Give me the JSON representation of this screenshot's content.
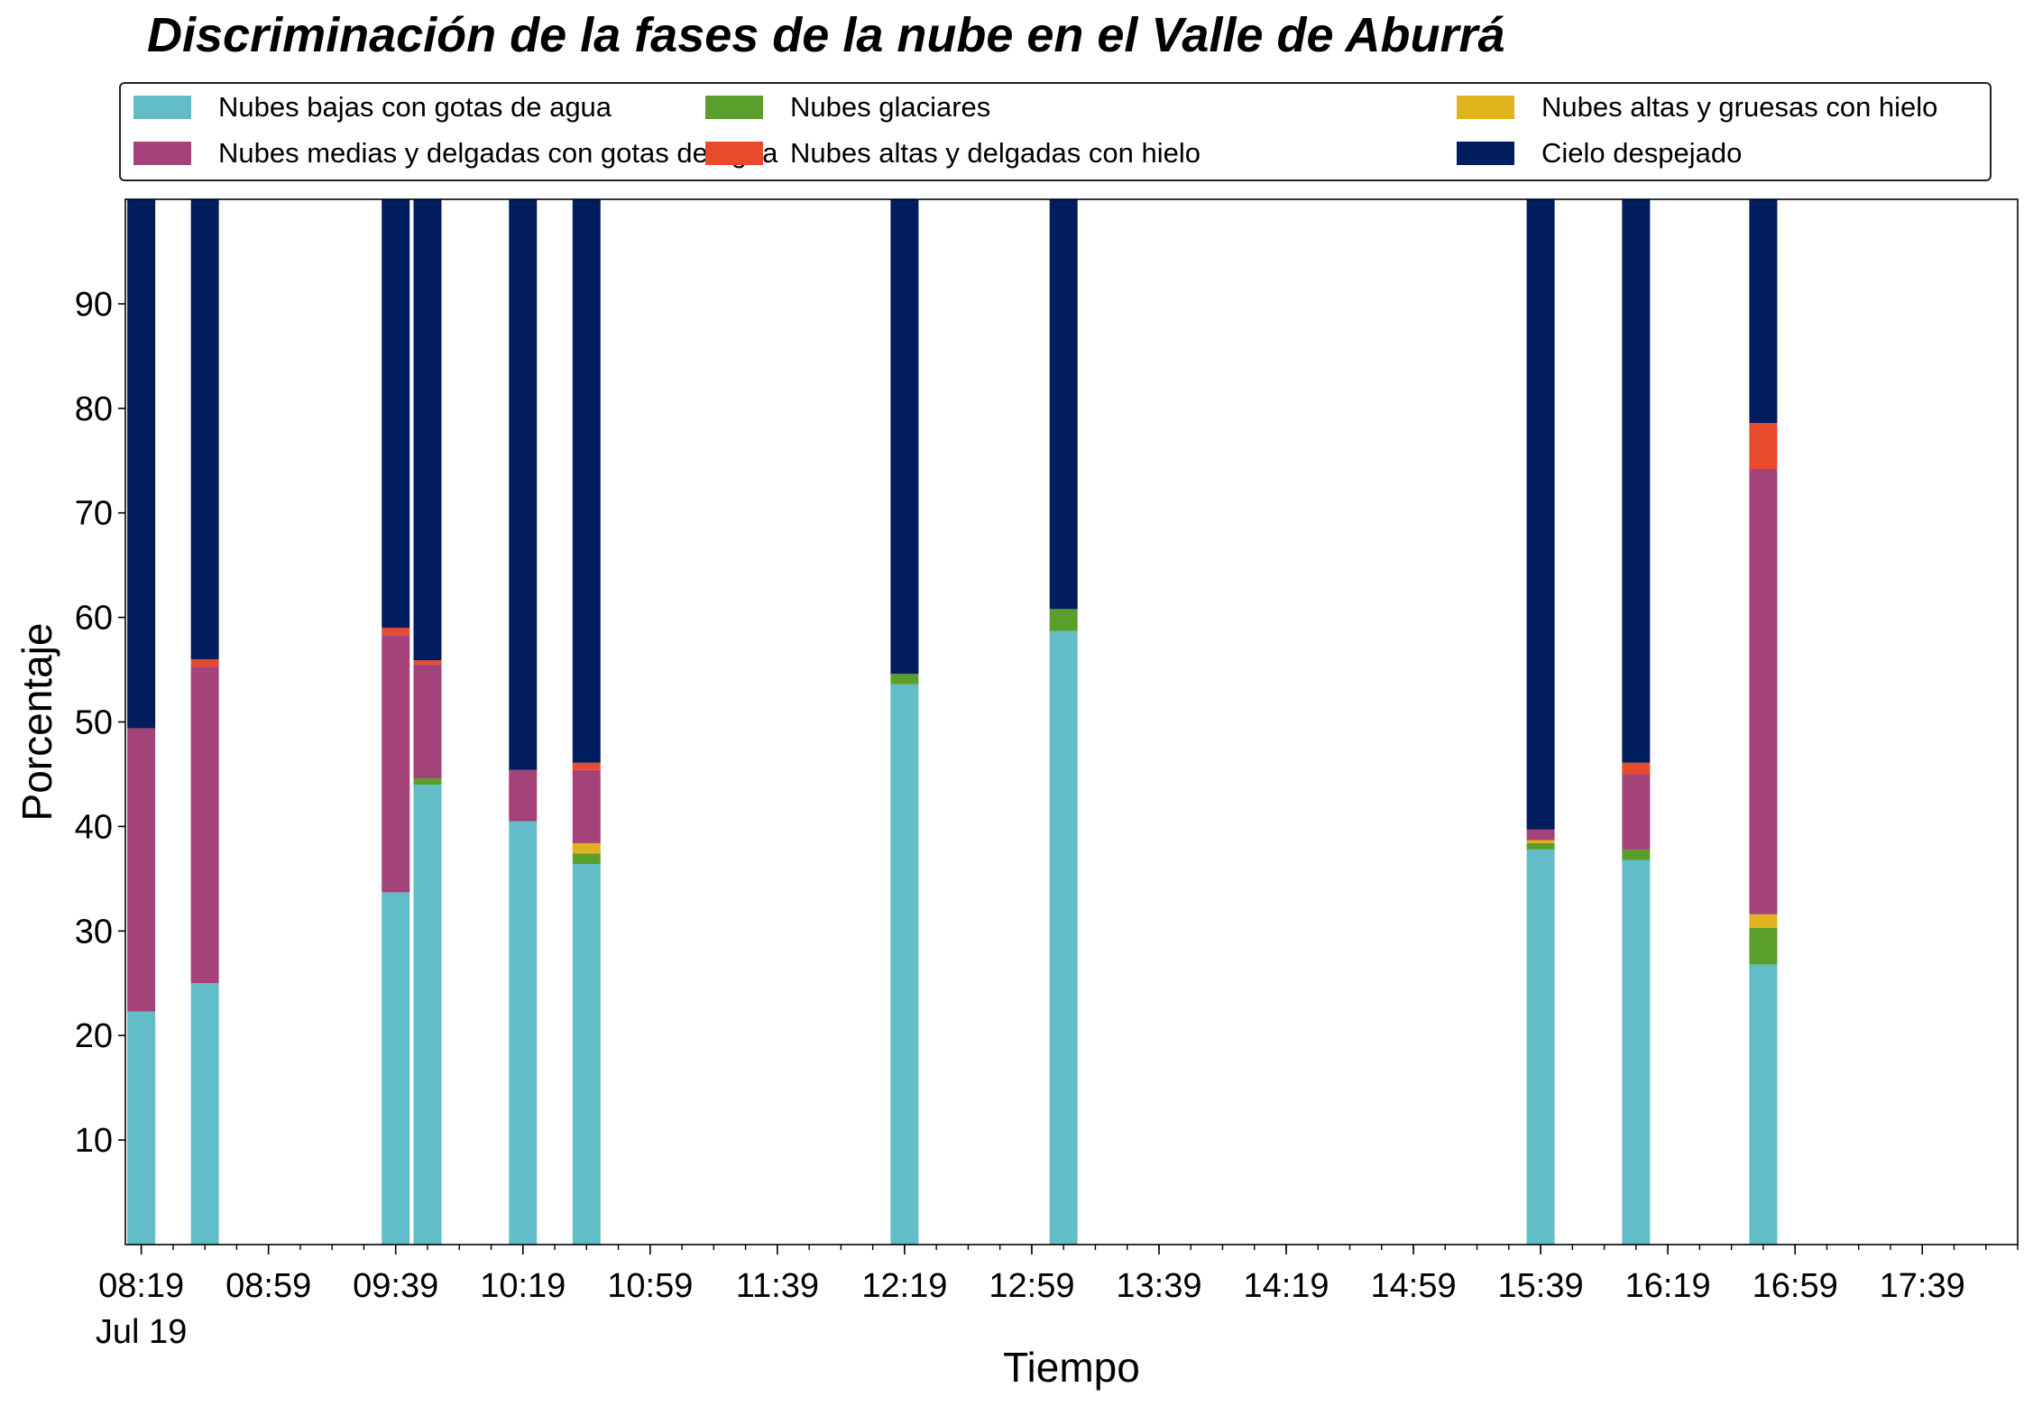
{
  "chart_data": {
    "type": "bar",
    "stacked": true,
    "title": "Discriminación de la fases de la nube en el Valle de Aburrá",
    "xlabel": "Tiempo",
    "ylabel": "Porcentaje",
    "ylim": [
      0,
      100
    ],
    "xlim": [
      "08:14",
      "18:09"
    ],
    "x_date_label": "Jul 19",
    "x_ticks": [
      "08:19",
      "08:59",
      "09:39",
      "10:19",
      "10:59",
      "11:39",
      "12:19",
      "12:59",
      "13:39",
      "14:19",
      "14:59",
      "15:39",
      "16:19",
      "16:59",
      "17:39"
    ],
    "y_ticks": [
      10,
      20,
      30,
      40,
      50,
      60,
      70,
      80,
      90
    ],
    "grid": false,
    "legend_position": "top",
    "x": [
      "08:19",
      "08:39",
      "09:39",
      "09:49",
      "10:19",
      "10:39",
      "12:19",
      "13:09",
      "15:39",
      "16:09",
      "16:49"
    ],
    "series": [
      {
        "name": "Nubes bajas con gotas de agua",
        "color": "#63bdc8",
        "values": [
          22.3,
          25.0,
          33.7,
          44.0,
          40.5,
          36.4,
          53.6,
          58.7,
          37.8,
          36.8,
          26.8
        ]
      },
      {
        "name": "Nubes glaciares",
        "color": "#5a9e2b",
        "values": [
          0,
          0,
          0,
          0.6,
          0,
          1.0,
          1.0,
          2.1,
          0.6,
          1.0,
          3.5
        ]
      },
      {
        "name": "Nubes altas y gruesas con hielo",
        "color": "#e0b21b",
        "values": [
          0,
          0,
          0,
          0,
          0,
          1.0,
          0,
          0,
          0.3,
          0,
          1.3
        ]
      },
      {
        "name": "Nubes medias y delgadas con gotas de agua",
        "color": "#a3437a",
        "values": [
          27.1,
          30.3,
          24.6,
          10.9,
          4.9,
          7.0,
          0,
          0,
          1.0,
          7.2,
          42.6
        ]
      },
      {
        "name": "Nubes altas y delgadas con hielo",
        "color": "#e84a2e",
        "values": [
          0,
          0.7,
          0.7,
          0.4,
          0,
          0.7,
          0,
          0,
          0,
          1.1,
          4.4
        ]
      },
      {
        "name": "Cielo despejado",
        "color": "#021d5d",
        "values": [
          50.6,
          44.0,
          41.0,
          44.1,
          54.6,
          53.9,
          45.4,
          39.2,
          60.3,
          53.9,
          21.4
        ]
      }
    ]
  }
}
